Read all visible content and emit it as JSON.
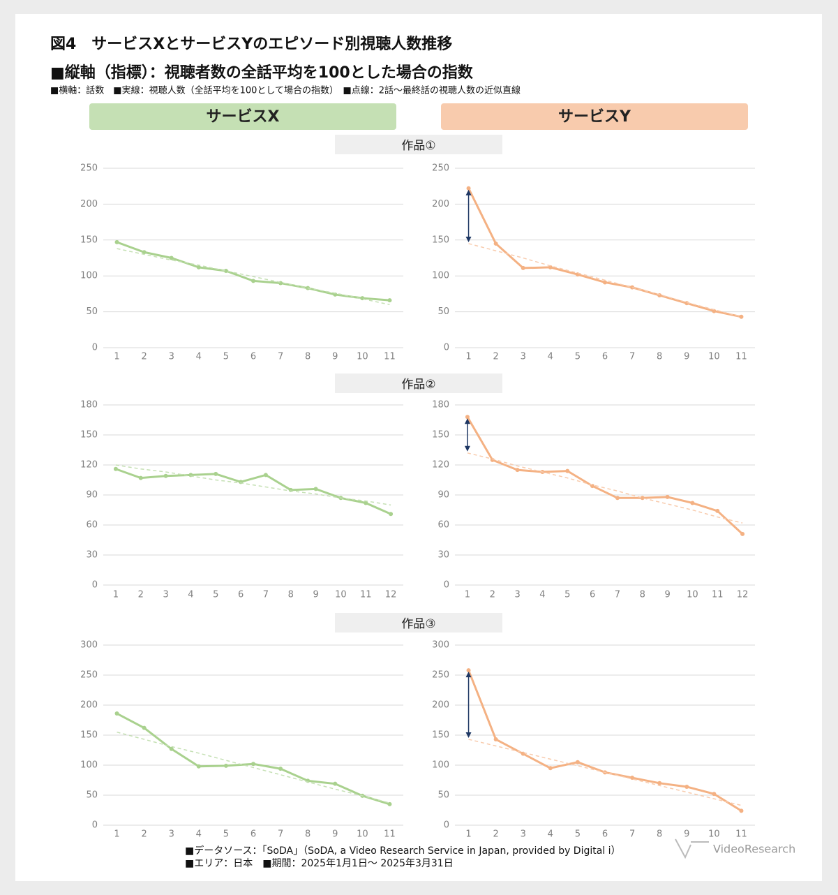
{
  "header": {
    "title": "図4　サービスXとサービスYのエピソード別視聴人数推移",
    "subtitle": "■縦軸（指標）：視聴者数の全話平均を100とした場合の指数",
    "note": "■横軸：話数　■実線：視聴人数（全話平均を100として場合の指数）　■点線：2話～最終話の視聴人数の近似直線"
  },
  "columns": [
    "サービスX",
    "サービスY"
  ],
  "sections": [
    "作品①",
    "作品②",
    "作品③"
  ],
  "chart_data": [
    {
      "type": "line",
      "categories": [
        "1",
        "2",
        "3",
        "4",
        "5",
        "6",
        "7",
        "8",
        "9",
        "10",
        "11"
      ],
      "ylim": [
        0,
        250
      ],
      "yticks": [
        0,
        50,
        100,
        150,
        200,
        250
      ],
      "grid": true,
      "series": [
        {
          "color": "#a9d18e",
          "values": [
            147,
            133,
            125,
            112,
            107,
            93,
            90,
            83,
            74,
            69,
            66
          ]
        },
        {
          "color": "#c5e0b4",
          "dashed": true,
          "values": [
            138,
            130,
            122,
            115,
            107,
            99,
            91,
            83,
            76,
            68,
            60
          ]
        }
      ]
    },
    {
      "type": "line",
      "categories": [
        "1",
        "2",
        "3",
        "4",
        "5",
        "6",
        "7",
        "8",
        "9",
        "10",
        "11"
      ],
      "ylim": [
        0,
        250
      ],
      "yticks": [
        0,
        50,
        100,
        150,
        200,
        250
      ],
      "grid": true,
      "arrow": true,
      "series": [
        {
          "color": "#f4b183",
          "values": [
            222,
            145,
            111,
            112,
            102,
            91,
            84,
            73,
            62,
            51,
            43
          ]
        },
        {
          "color": "#f8cbad",
          "dashed": true,
          "values": [
            145,
            135,
            125,
            114,
            104,
            94,
            84,
            74,
            63,
            53,
            43
          ]
        }
      ]
    },
    {
      "type": "line",
      "categories": [
        "1",
        "2",
        "3",
        "4",
        "5",
        "6",
        "7",
        "8",
        "9",
        "10",
        "11",
        "12"
      ],
      "ylim": [
        0,
        180
      ],
      "yticks": [
        0,
        30,
        60,
        90,
        120,
        150,
        180
      ],
      "grid": true,
      "series": [
        {
          "color": "#a9d18e",
          "values": [
            116,
            107,
            109,
            110,
            111,
            103,
            110,
            95,
            96,
            87,
            82,
            71
          ]
        },
        {
          "color": "#c5e0b4",
          "dashed": true,
          "values": [
            120,
            116,
            113,
            109,
            105,
            102,
            98,
            94,
            91,
            87,
            84,
            80
          ]
        }
      ]
    },
    {
      "type": "line",
      "categories": [
        "1",
        "2",
        "3",
        "4",
        "5",
        "6",
        "7",
        "8",
        "9",
        "10",
        "11",
        "12"
      ],
      "ylim": [
        0,
        180
      ],
      "yticks": [
        0,
        30,
        60,
        90,
        120,
        150,
        180
      ],
      "grid": true,
      "arrow": true,
      "series": [
        {
          "color": "#f4b183",
          "values": [
            168,
            125,
            115,
            113,
            114,
            99,
            87,
            87,
            88,
            82,
            74,
            51
          ]
        },
        {
          "color": "#f8cbad",
          "dashed": true,
          "values": [
            132,
            126,
            119,
            113,
            107,
            100,
            94,
            87,
            81,
            75,
            68,
            62
          ]
        }
      ]
    },
    {
      "type": "line",
      "categories": [
        "1",
        "2",
        "3",
        "4",
        "5",
        "6",
        "7",
        "8",
        "9",
        "10",
        "11"
      ],
      "ylim": [
        0,
        300
      ],
      "yticks": [
        0,
        50,
        100,
        150,
        200,
        250,
        300
      ],
      "grid": true,
      "series": [
        {
          "color": "#a9d18e",
          "values": [
            186,
            162,
            127,
            98,
            99,
            102,
            94,
            74,
            69,
            49,
            35
          ]
        },
        {
          "color": "#c5e0b4",
          "dashed": true,
          "values": [
            155,
            143,
            131,
            120,
            108,
            96,
            84,
            72,
            60,
            49,
            37
          ]
        }
      ]
    },
    {
      "type": "line",
      "categories": [
        "1",
        "2",
        "3",
        "4",
        "5",
        "6",
        "7",
        "8",
        "9",
        "10",
        "11"
      ],
      "ylim": [
        0,
        300
      ],
      "yticks": [
        0,
        50,
        100,
        150,
        200,
        250,
        300
      ],
      "grid": true,
      "arrow": true,
      "series": [
        {
          "color": "#f4b183",
          "values": [
            258,
            143,
            119,
            95,
            105,
            88,
            79,
            70,
            64,
            52,
            24
          ]
        },
        {
          "color": "#f8cbad",
          "dashed": true,
          "values": [
            143,
            132,
            121,
            110,
            99,
            88,
            77,
            66,
            55,
            44,
            33
          ]
        }
      ]
    }
  ],
  "footer": [
    "■データソース：「SoDA」（SoDA, a Video Research Service in Japan, provided by Digital i）",
    "■エリア：日本　■期間：2025年1月1日～ 2025年3月31日"
  ],
  "logo": "VideoResearch"
}
